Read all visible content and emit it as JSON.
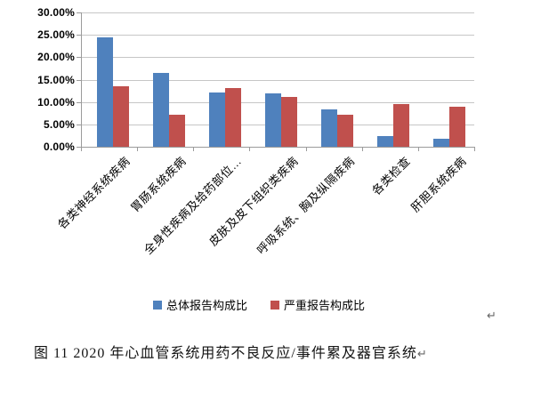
{
  "figure": {
    "caption": "图 11  2020 年心血管系统用药不良反应/事件累及器官系统",
    "return_mark": "↵"
  },
  "chart_data": {
    "type": "bar",
    "title": "",
    "xlabel": "",
    "ylabel": "",
    "categories": [
      "各类神经系统疾病",
      "胃肠系统疾病",
      "全身性疾病及给药部位…",
      "皮肤及皮下组织类疾病",
      "呼吸系统、胸及纵隔疾病",
      "各类检查",
      "肝胆系统疾病"
    ],
    "series": [
      {
        "name": "总体报告构成比",
        "color": "#4F81BD",
        "values": [
          24.5,
          16.4,
          12.2,
          11.9,
          8.3,
          2.4,
          1.7
        ]
      },
      {
        "name": "严重报告构成比",
        "color": "#C0504D",
        "values": [
          13.6,
          7.2,
          13.1,
          11.2,
          7.2,
          9.5,
          8.9
        ]
      }
    ],
    "ylim": [
      0,
      30
    ],
    "ytick_step": 5,
    "ytick_labels": [
      "0.00%",
      "5.00%",
      "10.00%",
      "15.00%",
      "20.00%",
      "25.00%",
      "30.00%"
    ],
    "grid": true,
    "legend_position": "bottom"
  },
  "colors": {
    "series_total": "#4F81BD",
    "series_serious": "#C0504D",
    "gridline": "#C6C6C6",
    "axis": "#9B9B9B",
    "background": "#FFFFFF"
  }
}
